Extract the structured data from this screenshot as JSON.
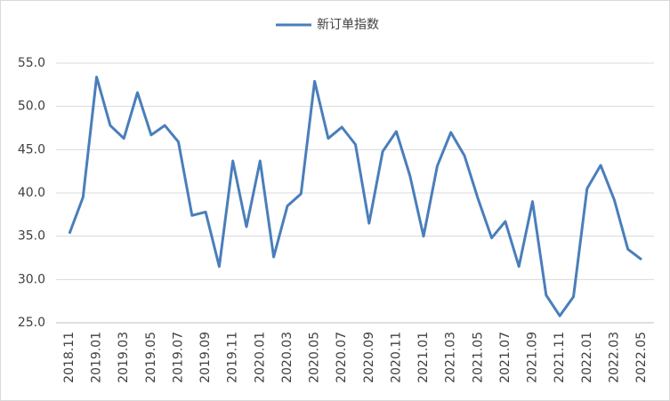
{
  "chart_data": {
    "type": "line",
    "categories": [
      "2018.11",
      null,
      "2019.01",
      null,
      "2019.03",
      null,
      "2019.05",
      null,
      "2019.07",
      null,
      "2019.09",
      null,
      "2019.11",
      null,
      "2020.01",
      null,
      "2020.03",
      null,
      "2020.05",
      null,
      "2020.07",
      null,
      "2020.09",
      null,
      "2020.11",
      null,
      "2021.01",
      null,
      "2021.03",
      null,
      "2021.05",
      null,
      "2021.07",
      null,
      "2021.09",
      null,
      "2021.11",
      null,
      "2022.01",
      null,
      "2022.03",
      null,
      "2022.05"
    ],
    "series": [
      {
        "name": "新订单指数",
        "color": "#4a7ebb",
        "values": [
          35.3,
          39.5,
          53.4,
          47.8,
          46.3,
          51.6,
          46.7,
          47.8,
          45.9,
          37.4,
          37.8,
          31.5,
          43.7,
          36.1,
          43.7,
          32.6,
          38.5,
          39.9,
          52.9,
          46.3,
          47.6,
          45.6,
          36.5,
          44.8,
          47.1,
          42.0,
          35.0,
          43.1,
          47.0,
          44.3,
          39.3,
          34.8,
          36.7,
          31.5,
          39.0,
          28.2,
          25.8,
          28.0,
          40.5,
          43.2,
          39.2,
          33.5,
          32.3
        ]
      }
    ],
    "ylim": [
      25,
      55
    ],
    "yticks": [
      {
        "value": 25,
        "label": "25.0"
      },
      {
        "value": 30,
        "label": "30.0"
      },
      {
        "value": 35,
        "label": "35.0"
      },
      {
        "value": 40,
        "label": "40.0"
      },
      {
        "value": 45,
        "label": "45.0"
      },
      {
        "value": 50,
        "label": "50.0"
      },
      {
        "value": 55,
        "label": "55.0"
      }
    ],
    "grid": true,
    "legend": "top"
  }
}
